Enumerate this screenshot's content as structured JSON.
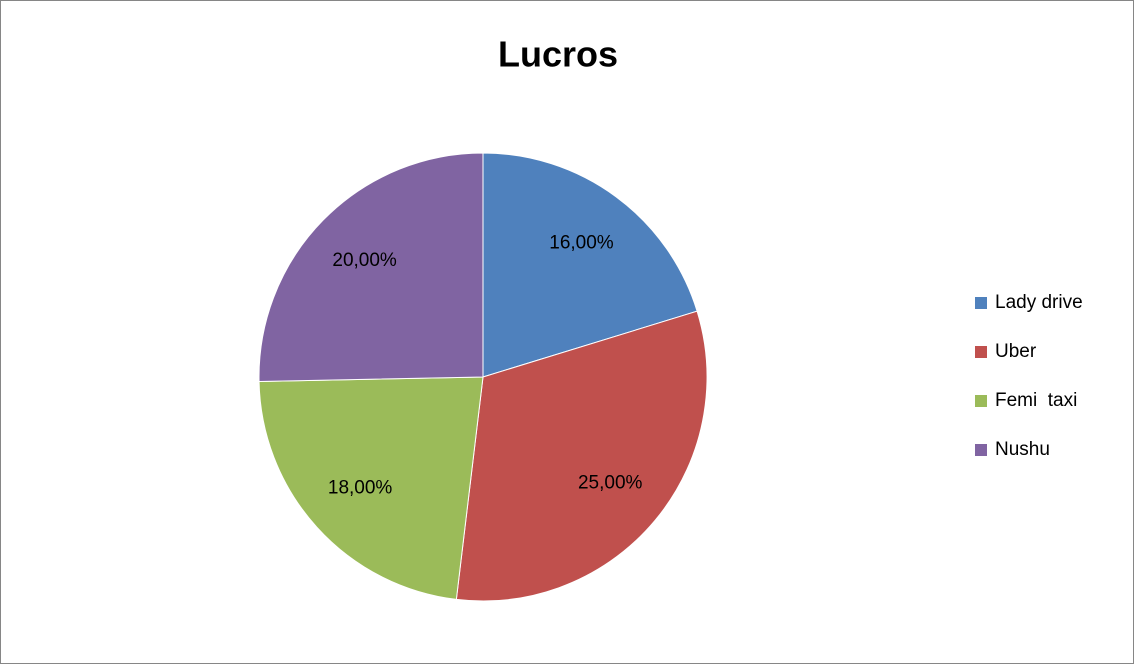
{
  "chart_data": {
    "type": "pie",
    "title": "Lucros",
    "categories": [
      "Lady drive",
      "Uber",
      "Femi  taxi",
      "Nushu"
    ],
    "values": [
      16,
      25,
      18,
      20
    ],
    "value_labels": [
      "16,00%",
      "25,00%",
      "18,00%",
      "20,00%"
    ],
    "colors": [
      "#4f81bd",
      "#c0504d",
      "#9bbb59",
      "#8064a2"
    ],
    "legend": "right"
  }
}
